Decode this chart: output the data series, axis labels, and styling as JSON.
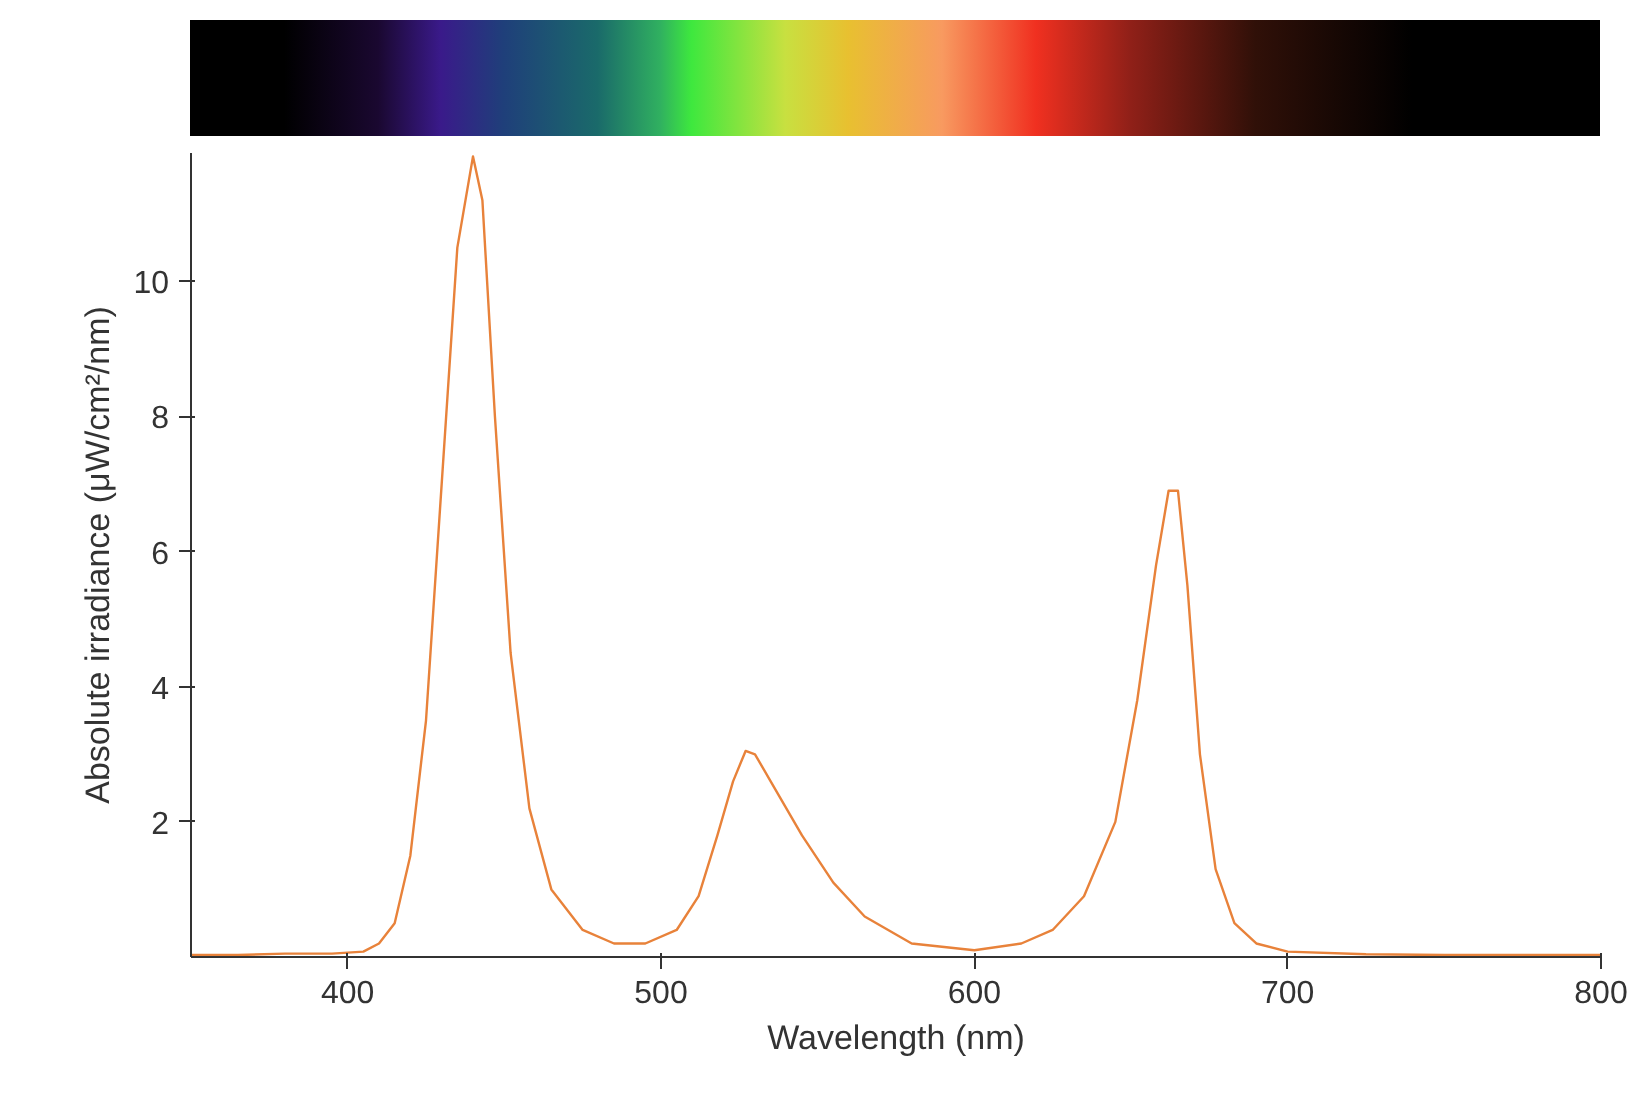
{
  "chart_data": {
    "type": "line",
    "xlabel": "Wavelength (nm)",
    "ylabel": "Absolute irradiance (μW/cm²/nm)",
    "x": [
      350,
      365,
      380,
      395,
      405,
      410,
      415,
      420,
      425,
      430,
      435,
      440,
      443,
      447,
      452,
      458,
      465,
      475,
      485,
      495,
      505,
      512,
      518,
      523,
      527,
      530,
      535,
      545,
      555,
      565,
      580,
      600,
      615,
      625,
      635,
      645,
      652,
      658,
      662,
      665,
      668,
      672,
      677,
      683,
      690,
      700,
      725,
      750,
      775,
      800
    ],
    "series": [
      {
        "color": "#e8823a",
        "values": [
          0.03,
          0.03,
          0.05,
          0.05,
          0.08,
          0.2,
          0.5,
          1.5,
          3.5,
          7,
          10.5,
          11.85,
          11.2,
          8,
          4.5,
          2.2,
          1,
          0.4,
          0.2,
          0.2,
          0.4,
          0.9,
          1.8,
          2.6,
          3.05,
          3.0,
          2.6,
          1.8,
          1.1,
          0.6,
          0.2,
          0.1,
          0.2,
          0.4,
          0.9,
          2,
          3.8,
          5.8,
          6.9,
          6.9,
          5.5,
          3,
          1.3,
          0.5,
          0.2,
          0.08,
          0.04,
          0.03,
          0.03,
          0.03
        ]
      }
    ],
    "xlim": [
      350,
      800
    ],
    "xticks": [
      400,
      500,
      600,
      700,
      800
    ],
    "ylim": [
      0,
      11.9
    ],
    "yticks": [
      2,
      4,
      6,
      8,
      10
    ],
    "grid": false,
    "marker": "none",
    "line_style": "solid"
  }
}
